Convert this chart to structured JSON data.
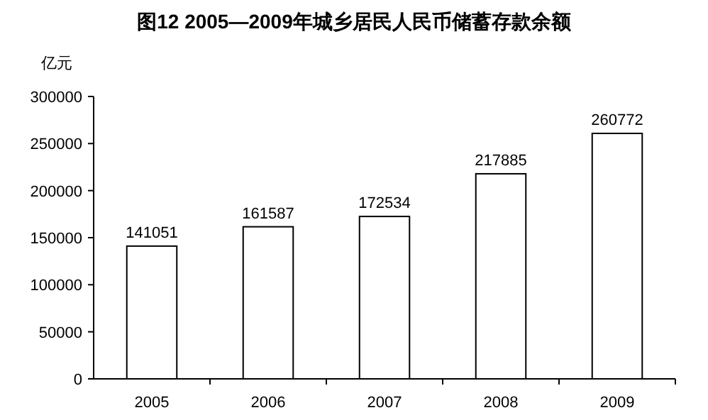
{
  "chart_data": {
    "type": "bar",
    "title": "图12  2005—2009年城乡居民人民币储蓄存款余额",
    "ylabel": "亿元",
    "categories": [
      "2005",
      "2006",
      "2007",
      "2008",
      "2009"
    ],
    "values": [
      141051,
      161587,
      172534,
      217885,
      260772
    ],
    "color": "#ffffff",
    "data_labels": true,
    "ylim": [
      0,
      300000
    ],
    "yticks": [
      0,
      50000,
      100000,
      150000,
      200000,
      250000,
      300000
    ]
  }
}
